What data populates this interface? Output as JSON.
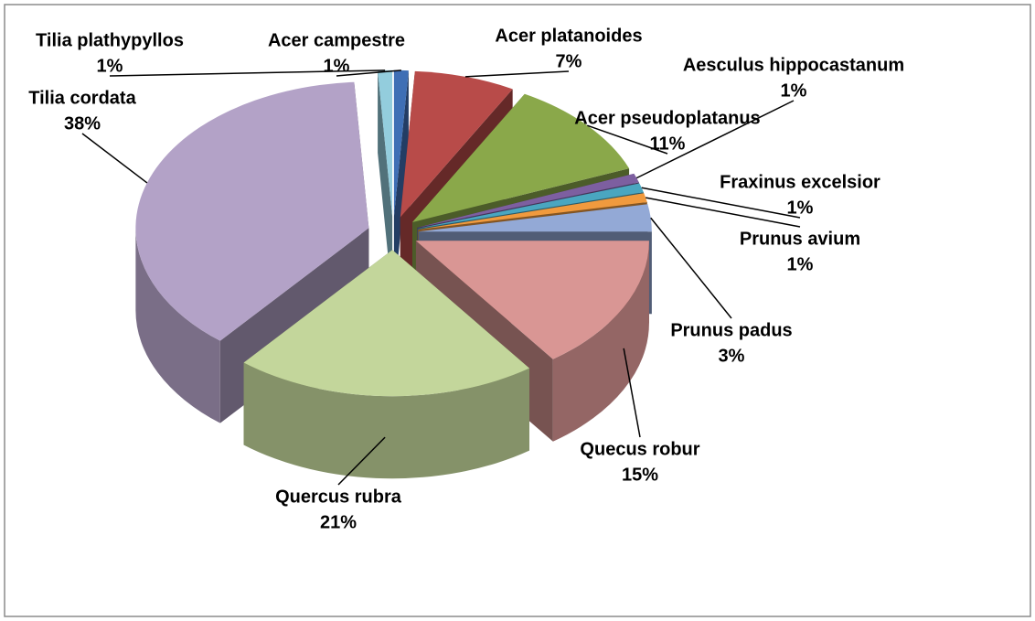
{
  "chart_data": {
    "type": "pie",
    "categories": [
      "Acer campestre",
      "Acer platanoides",
      "Acer pseudoplatanus",
      "Aesculus hippocastanum",
      "Fraxinus excelsior",
      "Prunus avium",
      "Prunus padus",
      "Quecus robur",
      "Quercus rubra",
      "Tilia cordata",
      "Tilia plathypyllos"
    ],
    "values": [
      1,
      7,
      11,
      1,
      1,
      1,
      3,
      15,
      21,
      38,
      1
    ],
    "value_labels": [
      "1%",
      "7%",
      "11%",
      "1%",
      "1%",
      "1%",
      "3%",
      "15%",
      "21%",
      "38%",
      "1%"
    ],
    "colors": [
      "#3f6fb5",
      "#b84b49",
      "#8aa84a",
      "#7d5fa0",
      "#4aa6c0",
      "#f09a3e",
      "#93a9d6",
      "#d99694",
      "#c3d69b",
      "#b3a2c7",
      "#93cddd"
    ]
  }
}
